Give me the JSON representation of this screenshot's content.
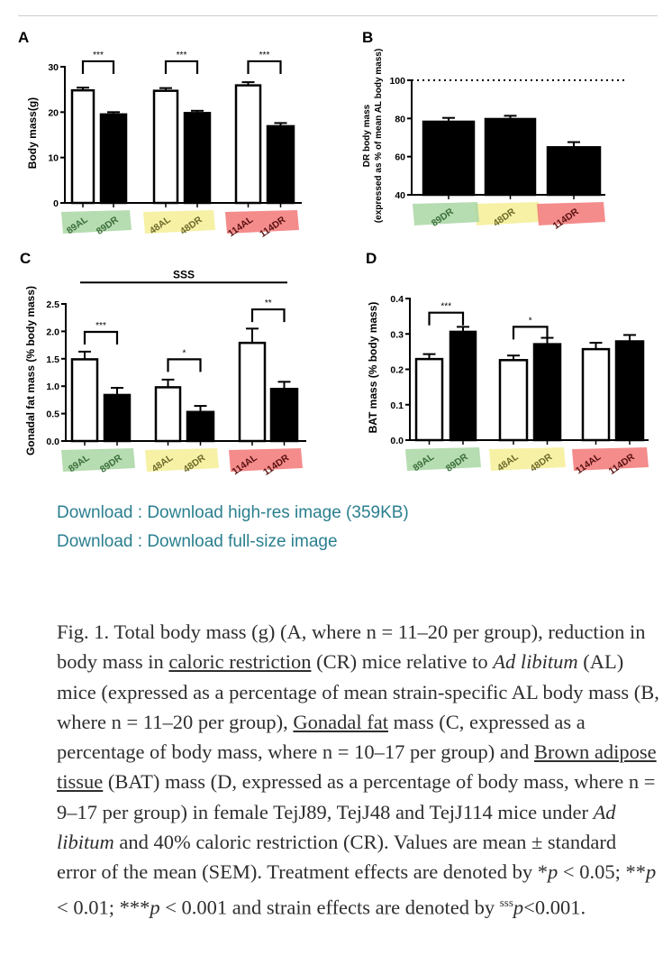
{
  "links": [
    {
      "label": "Download : Download high-res image (359KB)"
    },
    {
      "label": "Download : Download full-size image"
    }
  ],
  "caption": [
    {
      "t": "Fig. 1. Total body mass (g) (A, where n = 11–20 per group), reduction in body mass in "
    },
    {
      "t": "caloric restriction",
      "s": "u"
    },
    {
      "t": " (CR) mice relative to "
    },
    {
      "t": "Ad libitum",
      "s": "i"
    },
    {
      "t": " (AL) mice (expressed as a percentage of mean strain-specific AL body mass (B, where n = 11–20 per group), "
    },
    {
      "t": "Gonadal fat",
      "s": "u"
    },
    {
      "t": " mass (C, expressed as a percentage of body mass, where n = 10–17 per group) and "
    },
    {
      "t": "Brown adipose tissue",
      "s": "u"
    },
    {
      "t": " (BAT) mass (D, expressed as a percentage of body mass, where n = 9–17 per group) in female TejJ89, TejJ48 and TejJ114 mice under "
    },
    {
      "t": "Ad libitum",
      "s": "i"
    },
    {
      "t": " and 40% caloric restriction (CR). Values are mean ± standard error of the mean (SEM). Treatment effects are denoted by *"
    },
    {
      "t": "p",
      "s": "i"
    },
    {
      "t": " < 0.05; **"
    },
    {
      "t": "p",
      "s": "i"
    },
    {
      "t": " < 0.01; ***"
    },
    {
      "t": "p",
      "s": "i"
    },
    {
      "t": " < 0.001 and strain effects are denoted by "
    },
    {
      "t": "sss",
      "s": "sup"
    },
    {
      "t": "p",
      "s": "i"
    },
    {
      "t": "<0.001."
    }
  ],
  "colors": {
    "link": "#2a7f8f",
    "strain89": "#a9d6a3",
    "strain48": "#f4ee95",
    "strain114": "#f27878"
  },
  "chart_data": [
    {
      "panel": "A",
      "type": "bar",
      "ylabel": [
        "Body mass(g)"
      ],
      "categories": [
        "89AL",
        "89DR",
        "48AL",
        "48DR",
        "114AL",
        "114DR"
      ],
      "strain": [
        "89",
        "89",
        "48",
        "48",
        "114",
        "114"
      ],
      "fill": [
        "white",
        "black",
        "white",
        "black",
        "white",
        "black"
      ],
      "values": [
        24.8,
        19.5,
        24.7,
        19.8,
        25.9,
        16.9
      ],
      "errors": [
        0.6,
        0.5,
        0.6,
        0.5,
        0.7,
        0.7
      ],
      "ylim": [
        0,
        30
      ],
      "yticks": [
        "0",
        "10",
        "20",
        "30"
      ],
      "brackets": [
        {
          "pair": [
            0,
            1
          ],
          "y": 31.2,
          "label": "***"
        },
        {
          "pair": [
            2,
            3
          ],
          "y": 31.2,
          "label": "***"
        },
        {
          "pair": [
            4,
            5
          ],
          "y": 31.2,
          "label": "***"
        }
      ]
    },
    {
      "panel": "B",
      "type": "bar",
      "ylabel": [
        "DR body mass",
        "(expressed as % of mean AL body mass)"
      ],
      "categories": [
        "89DR",
        "48DR",
        "114DR"
      ],
      "strain": [
        "89",
        "48",
        "114"
      ],
      "fill": [
        "black",
        "black",
        "black"
      ],
      "values": [
        78.3,
        79.7,
        64.9
      ],
      "errors": [
        2.0,
        1.7,
        2.7
      ],
      "ylim": [
        40,
        100
      ],
      "yticks": [
        "40",
        "60",
        "80",
        "100"
      ],
      "reference_line": 100,
      "brackets": []
    },
    {
      "panel": "C",
      "type": "bar",
      "ylabel": [
        "Gonadal fat mass (% body mass)"
      ],
      "categories": [
        "89AL",
        "89DR",
        "48AL",
        "48DR",
        "114AL",
        "114DR"
      ],
      "strain": [
        "89",
        "89",
        "48",
        "48",
        "114",
        "114"
      ],
      "fill": [
        "white",
        "black",
        "white",
        "black",
        "white",
        "black"
      ],
      "values": [
        1.49,
        0.84,
        0.98,
        0.53,
        1.79,
        0.95
      ],
      "errors": [
        0.14,
        0.13,
        0.14,
        0.11,
        0.26,
        0.13
      ],
      "ylim": [
        0,
        2.5
      ],
      "yticks": [
        "0.0",
        "0.5",
        "1.0",
        "1.5",
        "2.0",
        "2.5"
      ],
      "brackets": [
        {
          "pair": [
            0,
            1
          ],
          "y": 1.99,
          "label": "***"
        },
        {
          "pair": [
            2,
            3
          ],
          "y": 1.49,
          "label": "*"
        },
        {
          "pair": [
            4,
            5
          ],
          "y": 2.4,
          "label": "**"
        }
      ],
      "strain_effect": {
        "label": "SSS",
        "y": 2.89
      }
    },
    {
      "panel": "D",
      "type": "bar",
      "ylabel": [
        "BAT mass (% body mass)"
      ],
      "categories": [
        "89AL",
        "89DR",
        "48AL",
        "48DR",
        "114AL",
        "114DR"
      ],
      "strain": [
        "89",
        "89",
        "48",
        "48",
        "114",
        "114"
      ],
      "fill": [
        "white",
        "black",
        "white",
        "black",
        "white",
        "black"
      ],
      "values": [
        0.229,
        0.306,
        0.226,
        0.271,
        0.257,
        0.279
      ],
      "errors": [
        0.014,
        0.014,
        0.013,
        0.018,
        0.018,
        0.018
      ],
      "ylim": [
        0,
        0.4
      ],
      "yticks": [
        "0.0",
        "0.1",
        "0.2",
        "0.3",
        "0.4"
      ],
      "brackets": [
        {
          "pair": [
            0,
            1
          ],
          "y": 0.36,
          "label": "***"
        },
        {
          "pair": [
            2,
            3
          ],
          "y": 0.32,
          "label": "*"
        }
      ]
    }
  ]
}
